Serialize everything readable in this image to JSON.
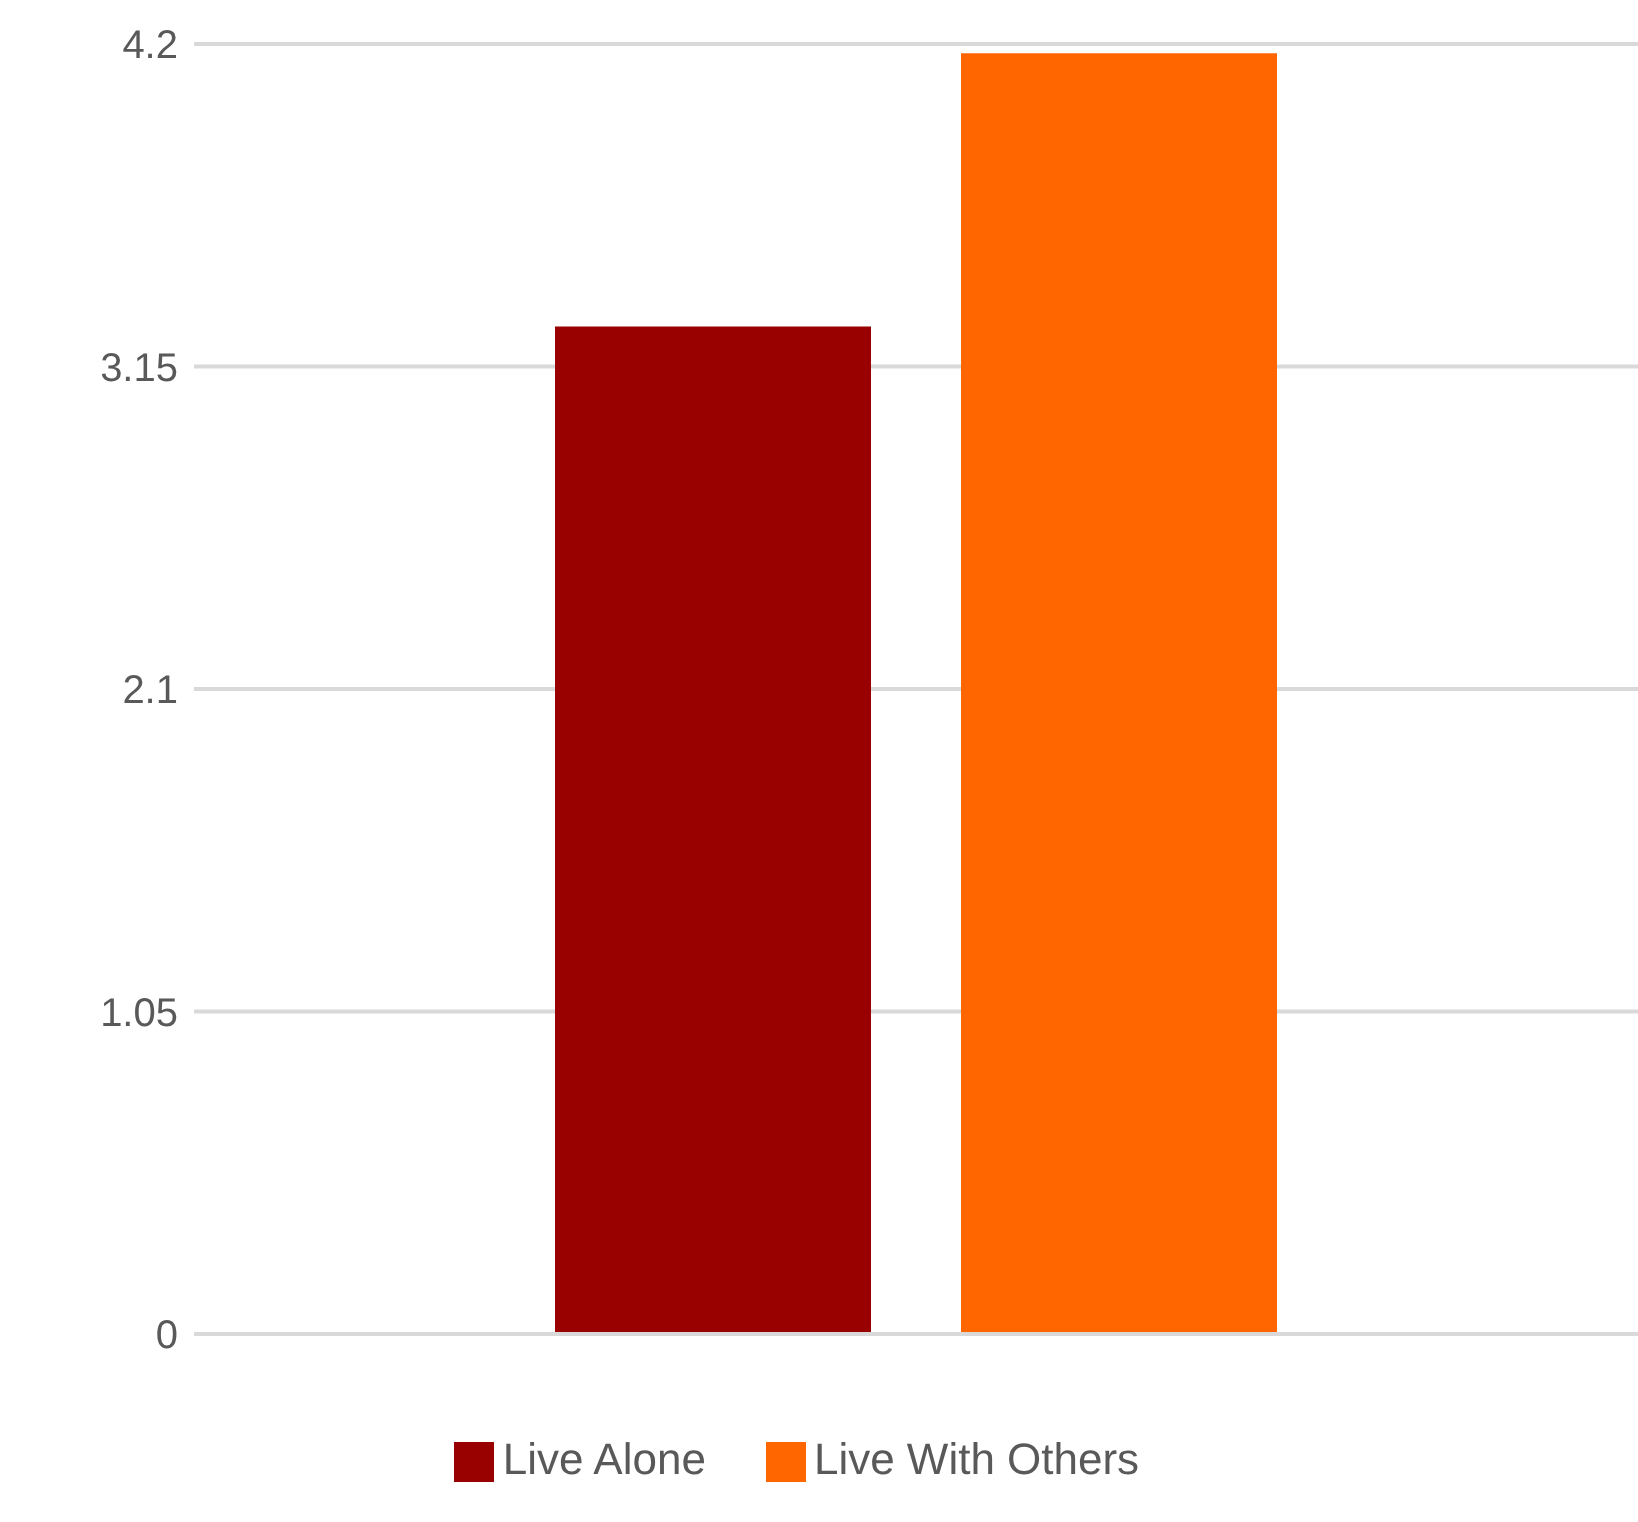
{
  "chart_data": {
    "type": "bar",
    "categories": [
      null
    ],
    "series": [
      {
        "name": "Live Alone",
        "color": "#990000",
        "values": [
          3.28
        ]
      },
      {
        "name": "Live With Others",
        "color": "#ff6600",
        "values": [
          4.17
        ]
      }
    ],
    "ylim": [
      0,
      4.2
    ],
    "yticks": [
      0,
      1.05,
      2.1,
      3.15,
      4.2
    ],
    "grid": "y",
    "legend": "bottom"
  }
}
